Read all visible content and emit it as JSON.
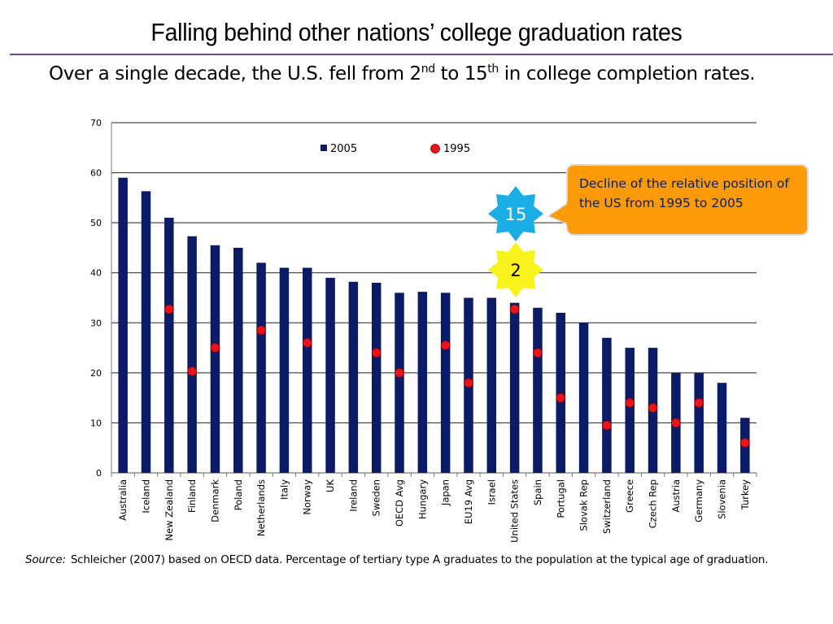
{
  "title": "Falling behind other nations’ college graduation rates",
  "subtitle": {
    "part1": "Over a single decade, the U.S. fell from 2",
    "sup1": "nd",
    "part2": " to 15",
    "sup2": "th",
    "part3": " in college completion rates."
  },
  "colors": {
    "bar_2005": "#0b1b66",
    "dot_1995": "#e8141c",
    "callout": "#fd9a08",
    "star_15": "#1baee6",
    "star_2": "#f7f31b",
    "title_rule": "#6e4a82"
  },
  "callout": {
    "text": "Decline of the relative position of the US from 1995 to 2005"
  },
  "badges": {
    "rank_2005": "15",
    "rank_1995": "2"
  },
  "source": {
    "label": "Source:",
    "text": "Schleicher (2007) based on OECD data. Percentage of tertiary type A graduates to the population at the typical age of graduation."
  },
  "chart_data": {
    "type": "bar",
    "title": "",
    "xlabel": "",
    "ylabel": "",
    "ylim": [
      0,
      70
    ],
    "yticks": [
      0,
      10,
      20,
      30,
      40,
      50,
      60,
      70
    ],
    "grid": true,
    "legend": [
      {
        "name": "2005",
        "marker": "bar"
      },
      {
        "name": "1995",
        "marker": "dot"
      }
    ],
    "legend_position": "top-center",
    "categories": [
      "Australia",
      "Iceland",
      "New Zealand",
      "Finland",
      "Denmark",
      "Poland",
      "Netherlands",
      "Italy",
      "Norway",
      "UK",
      "Ireland",
      "Sweden",
      "OECD Avg",
      "Hungary",
      "Japan",
      "EU19 Avg",
      "Israel",
      "United States",
      "Spain",
      "Portugal",
      "Slovak Rep",
      "Switzerland",
      "Greece",
      "Czech Rep",
      "Austria",
      "Germany",
      "Slovenia",
      "Turkey"
    ],
    "series": [
      {
        "name": "2005",
        "type": "bar",
        "values": [
          59,
          56.3,
          51,
          47.3,
          45.5,
          45,
          42,
          41,
          41,
          39,
          38.2,
          38,
          36,
          36.2,
          36,
          35,
          35,
          34,
          33,
          32,
          30,
          27,
          25,
          25,
          20,
          20,
          18,
          11
        ]
      },
      {
        "name": "1995",
        "type": "scatter",
        "values": [
          null,
          null,
          32.7,
          20.3,
          25,
          null,
          28.5,
          null,
          26,
          null,
          null,
          24,
          20,
          null,
          25.5,
          18,
          null,
          32.7,
          24,
          15,
          null,
          9.5,
          14,
          13,
          10,
          14,
          null,
          6
        ]
      }
    ]
  }
}
